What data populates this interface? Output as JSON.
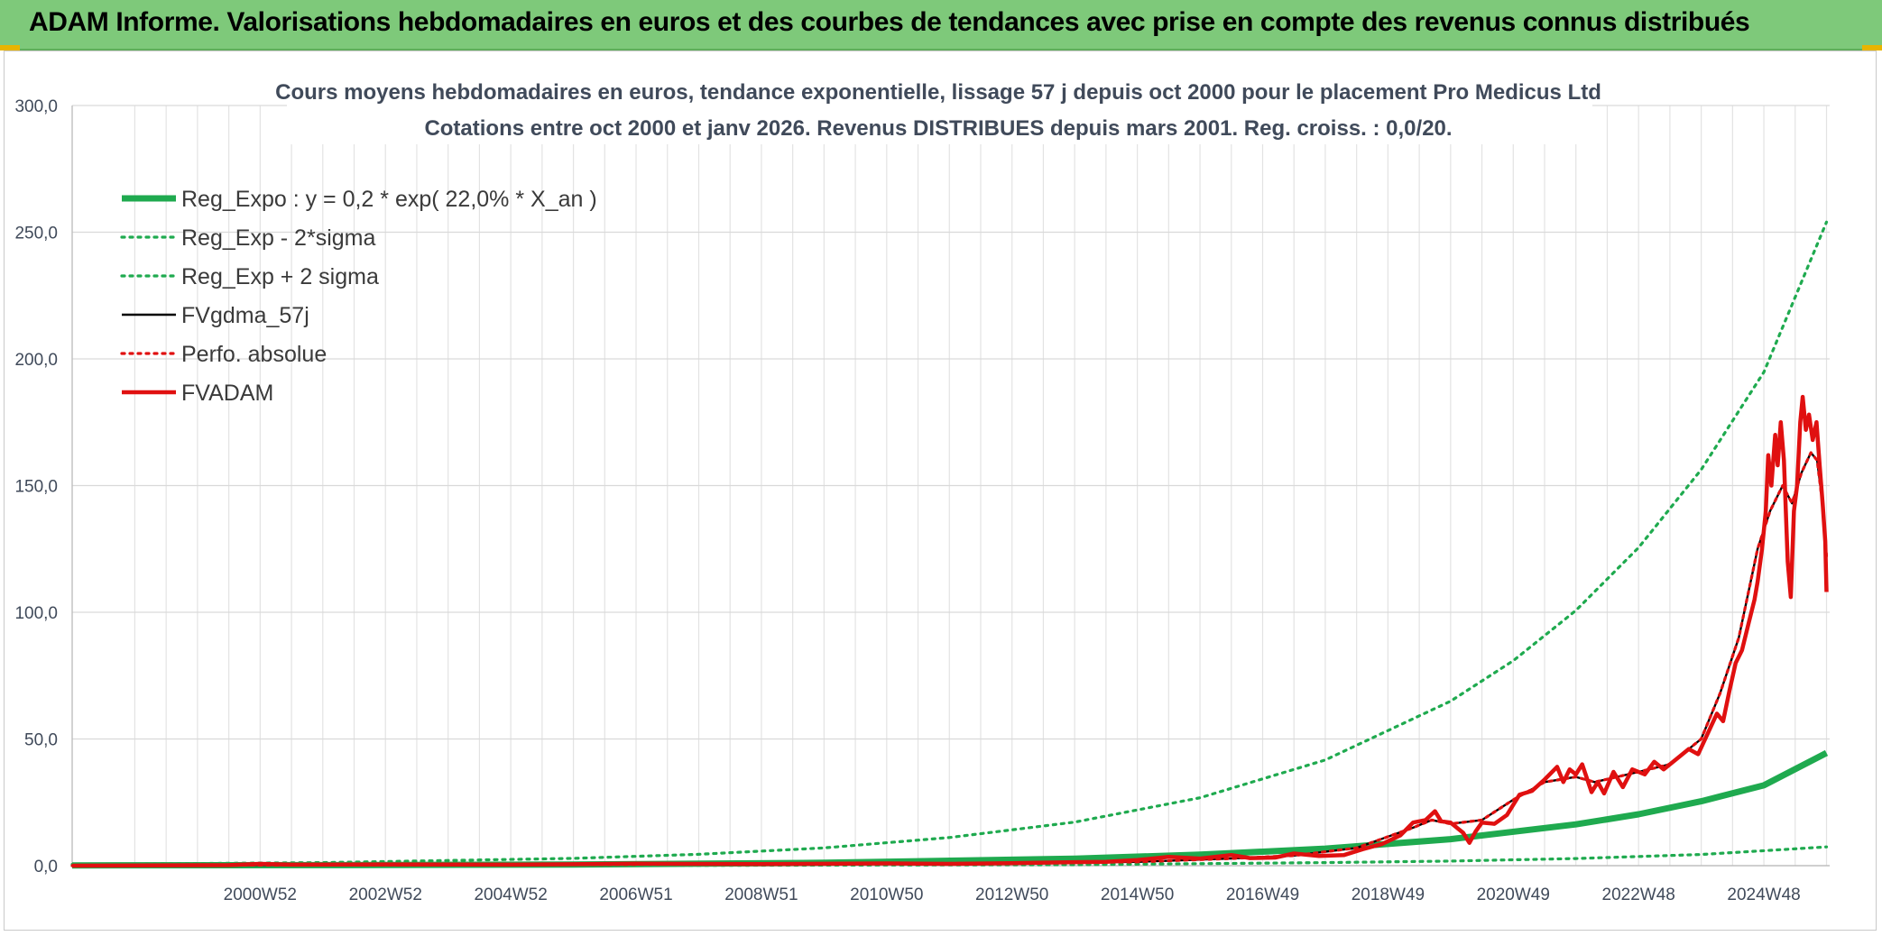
{
  "banner": {
    "title": "ADAM Informe. Valorisations hebdomadaires en euros et des courbes de tendances avec prise en compte des revenus connus distribués",
    "background": "#7ec97a"
  },
  "chart_data": {
    "type": "line",
    "title_line1": "Cours moyens hebdomadaires en euros, tendance exponentielle, lissage 57 j depuis oct 2000 pour le placement Pro Medicus Ltd",
    "title_line2": "Cotations entre oct 2000 et janv 2026. Revenus DISTRIBUES depuis mars 2001. Reg. croiss. : 0,0/20.",
    "xlabel": "",
    "ylabel": "",
    "x_range": [
      1998.0,
      2026.05
    ],
    "ylim": [
      0,
      300
    ],
    "y_ticks": [
      "0,0",
      "50,0",
      "100,0",
      "150,0",
      "200,0",
      "250,0",
      "300,0"
    ],
    "y_tick_values": [
      0,
      50,
      100,
      150,
      200,
      250,
      300
    ],
    "x_tick_labels": [
      "2000W52",
      "2002W52",
      "2004W52",
      "2006W51",
      "2008W51",
      "2010W50",
      "2012W50",
      "2014W50",
      "2016W49",
      "2018W49",
      "2020W49",
      "2022W48",
      "2024W48"
    ],
    "x_tick_values": [
      2001.0,
      2003.0,
      2005.0,
      2007.0,
      2009.0,
      2011.0,
      2013.0,
      2015.0,
      2017.0,
      2019.0,
      2021.0,
      2023.0,
      2025.0
    ],
    "grid": true,
    "legend_position": "top-left",
    "series": [
      {
        "name": "Reg_Expo : y = 0,2 * exp( 22,0% *  X_an )",
        "color": "#1faa4f",
        "style": "solid-thick",
        "points": [
          [
            1998.0,
            0.09
          ],
          [
            2002.0,
            0.2
          ],
          [
            2006.0,
            0.48
          ],
          [
            2010.0,
            1.15
          ],
          [
            2014.0,
            2.77
          ],
          [
            2016.0,
            4.33
          ],
          [
            2018.0,
            6.71
          ],
          [
            2020.0,
            10.48
          ],
          [
            2022.0,
            16.3
          ],
          [
            2023.0,
            20.3
          ],
          [
            2024.0,
            25.4
          ],
          [
            2025.0,
            31.7
          ],
          [
            2026.0,
            44.5
          ]
        ]
      },
      {
        "name": "Reg_Exp - 2*sigma",
        "color": "#1faa4f",
        "style": "dotted",
        "points": [
          [
            1998.0,
            0.01
          ],
          [
            2008.0,
            0.1
          ],
          [
            2014.0,
            0.4
          ],
          [
            2018.0,
            1.2
          ],
          [
            2020.0,
            1.8
          ],
          [
            2022.0,
            2.8
          ],
          [
            2024.0,
            4.4
          ],
          [
            2026.0,
            7.4
          ]
        ]
      },
      {
        "name": "Reg_Exp + 2 sigma",
        "color": "#1faa4f",
        "style": "dotted",
        "points": [
          [
            1998.0,
            0.5
          ],
          [
            2002.0,
            1.2
          ],
          [
            2006.0,
            2.9
          ],
          [
            2008.0,
            4.5
          ],
          [
            2010.0,
            7.0
          ],
          [
            2012.0,
            11.1
          ],
          [
            2014.0,
            17.2
          ],
          [
            2016.0,
            26.8
          ],
          [
            2018.0,
            41.7
          ],
          [
            2020.0,
            64.9
          ],
          [
            2021.0,
            80.9
          ],
          [
            2022.0,
            100.7
          ],
          [
            2023.0,
            125.5
          ],
          [
            2024.0,
            156.3
          ],
          [
            2025.0,
            194.8
          ],
          [
            2026.0,
            254.0
          ]
        ]
      },
      {
        "name": "FVgdma_57j",
        "color": "#000000",
        "style": "solid",
        "points": [
          [
            1998.0,
            0.0
          ],
          [
            2001.0,
            0.2
          ],
          [
            2005.0,
            0.3
          ],
          [
            2008.0,
            0.6
          ],
          [
            2012.0,
            0.9
          ],
          [
            2015.0,
            1.5
          ],
          [
            2016.5,
            2.8
          ],
          [
            2017.5,
            4.0
          ],
          [
            2018.5,
            7.0
          ],
          [
            2019.4,
            15.0
          ],
          [
            2019.7,
            18.0
          ],
          [
            2020.0,
            16.5
          ],
          [
            2020.5,
            18.0
          ],
          [
            2021.0,
            26.0
          ],
          [
            2021.5,
            33.0
          ],
          [
            2022.0,
            35.0
          ],
          [
            2022.3,
            33.0
          ],
          [
            2023.0,
            37.0
          ],
          [
            2023.5,
            40.0
          ],
          [
            2024.0,
            50.0
          ],
          [
            2024.3,
            68.0
          ],
          [
            2024.6,
            90.0
          ],
          [
            2024.9,
            125.0
          ],
          [
            2025.1,
            140.0
          ],
          [
            2025.3,
            150.0
          ],
          [
            2025.45,
            143.0
          ],
          [
            2025.6,
            155.0
          ],
          [
            2025.75,
            163.0
          ],
          [
            2025.85,
            160.0
          ],
          [
            2025.95,
            140.0
          ],
          [
            2026.0,
            122.0
          ]
        ]
      },
      {
        "name": "Perfo. absolue",
        "color": "#e01010",
        "style": "dotted",
        "points": [
          [
            1998.0,
            0.0
          ],
          [
            2001.0,
            0.2
          ],
          [
            2005.0,
            0.3
          ],
          [
            2008.0,
            0.6
          ],
          [
            2012.0,
            0.9
          ],
          [
            2015.0,
            1.5
          ],
          [
            2016.5,
            2.8
          ],
          [
            2017.5,
            4.0
          ],
          [
            2018.5,
            7.0
          ],
          [
            2019.4,
            15.0
          ],
          [
            2019.7,
            18.0
          ],
          [
            2020.0,
            16.5
          ],
          [
            2020.5,
            18.0
          ],
          [
            2021.0,
            26.0
          ],
          [
            2021.5,
            33.0
          ],
          [
            2022.0,
            35.0
          ],
          [
            2022.3,
            33.0
          ],
          [
            2023.0,
            37.0
          ],
          [
            2023.5,
            40.0
          ],
          [
            2024.0,
            50.0
          ],
          [
            2024.3,
            68.0
          ],
          [
            2024.6,
            90.0
          ],
          [
            2024.9,
            125.0
          ],
          [
            2025.1,
            140.0
          ],
          [
            2025.3,
            150.0
          ],
          [
            2025.45,
            143.0
          ],
          [
            2025.6,
            155.0
          ],
          [
            2025.75,
            163.0
          ],
          [
            2025.85,
            160.0
          ],
          [
            2025.95,
            140.0
          ],
          [
            2026.0,
            122.0
          ]
        ]
      },
      {
        "name": "FVADAM",
        "color": "#e01010",
        "style": "solid-thick",
        "points": [
          [
            1998.0,
            0.0
          ],
          [
            2000.5,
            0.2
          ],
          [
            2001.0,
            0.7
          ],
          [
            2001.5,
            0.4
          ],
          [
            2003.0,
            0.5
          ],
          [
            2005.0,
            0.4
          ],
          [
            2007.0,
            0.8
          ],
          [
            2009.0,
            0.6
          ],
          [
            2011.0,
            0.9
          ],
          [
            2012.0,
            0.7
          ],
          [
            2013.0,
            1.0
          ],
          [
            2014.0,
            1.4
          ],
          [
            2014.5,
            1.5
          ],
          [
            2015.0,
            2.2
          ],
          [
            2015.5,
            3.5
          ],
          [
            2016.0,
            2.8
          ],
          [
            2016.5,
            4.2
          ],
          [
            2016.8,
            3.0
          ],
          [
            2017.2,
            3.2
          ],
          [
            2017.5,
            4.8
          ],
          [
            2017.9,
            3.8
          ],
          [
            2018.3,
            4.2
          ],
          [
            2018.6,
            6.5
          ],
          [
            2018.9,
            8.5
          ],
          [
            2019.2,
            12.0
          ],
          [
            2019.4,
            17.0
          ],
          [
            2019.6,
            18.0
          ],
          [
            2019.75,
            21.5
          ],
          [
            2019.85,
            17.5
          ],
          [
            2020.0,
            17.0
          ],
          [
            2020.2,
            13.0
          ],
          [
            2020.3,
            9.0
          ],
          [
            2020.4,
            13.5
          ],
          [
            2020.5,
            17.0
          ],
          [
            2020.7,
            16.5
          ],
          [
            2020.9,
            20.0
          ],
          [
            2021.1,
            28.0
          ],
          [
            2021.3,
            29.5
          ],
          [
            2021.5,
            34.0
          ],
          [
            2021.7,
            39.0
          ],
          [
            2021.8,
            33.0
          ],
          [
            2021.9,
            38.0
          ],
          [
            2022.0,
            36.0
          ],
          [
            2022.1,
            40.0
          ],
          [
            2022.25,
            29.0
          ],
          [
            2022.35,
            33.0
          ],
          [
            2022.45,
            28.5
          ],
          [
            2022.6,
            37.0
          ],
          [
            2022.75,
            31.0
          ],
          [
            2022.9,
            38.0
          ],
          [
            2023.1,
            36.0
          ],
          [
            2023.25,
            41.0
          ],
          [
            2023.4,
            38.0
          ],
          [
            2023.6,
            42.0
          ],
          [
            2023.8,
            46.0
          ],
          [
            2023.95,
            44.0
          ],
          [
            2024.1,
            52.0
          ],
          [
            2024.25,
            60.0
          ],
          [
            2024.35,
            57.0
          ],
          [
            2024.45,
            69.0
          ],
          [
            2024.55,
            80.0
          ],
          [
            2024.65,
            85.0
          ],
          [
            2024.75,
            95.0
          ],
          [
            2024.85,
            105.0
          ],
          [
            2024.9,
            112.0
          ],
          [
            2024.97,
            125.0
          ],
          [
            2025.03,
            140.0
          ],
          [
            2025.07,
            162.0
          ],
          [
            2025.12,
            150.0
          ],
          [
            2025.18,
            170.0
          ],
          [
            2025.22,
            158.0
          ],
          [
            2025.27,
            175.0
          ],
          [
            2025.32,
            160.0
          ],
          [
            2025.38,
            120.0
          ],
          [
            2025.43,
            106.0
          ],
          [
            2025.48,
            140.0
          ],
          [
            2025.53,
            150.0
          ],
          [
            2025.58,
            175.0
          ],
          [
            2025.62,
            185.0
          ],
          [
            2025.67,
            172.0
          ],
          [
            2025.72,
            178.0
          ],
          [
            2025.78,
            168.0
          ],
          [
            2025.84,
            175.0
          ],
          [
            2025.89,
            158.0
          ],
          [
            2025.94,
            142.0
          ],
          [
            2025.98,
            128.0
          ],
          [
            2026.0,
            108.0
          ]
        ]
      }
    ]
  }
}
